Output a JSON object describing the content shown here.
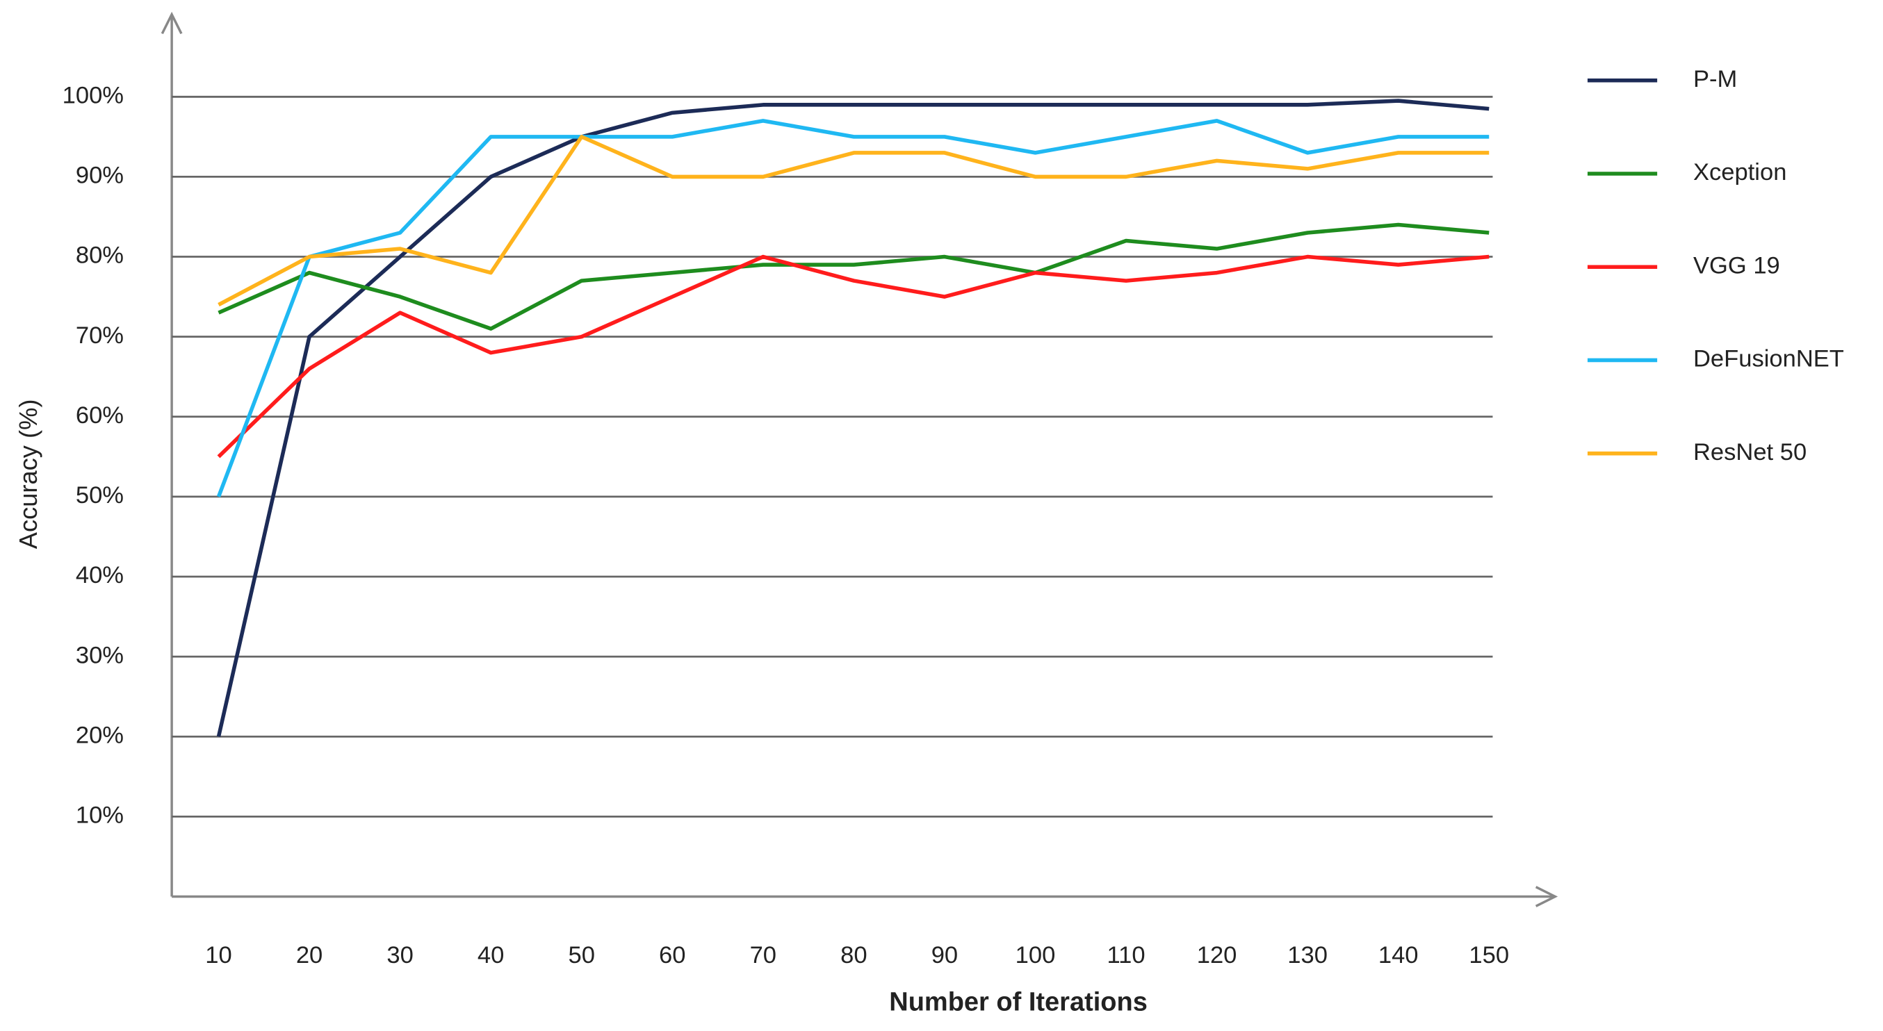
{
  "chart_data": {
    "type": "line",
    "x_label": "Number of Iterations",
    "y_label": "Accuracy (%)",
    "categories": [
      "10",
      "20",
      "30",
      "40",
      "50",
      "60",
      "70",
      "80",
      "90",
      "100",
      "110",
      "120",
      "130",
      "140",
      "150"
    ],
    "ylim": [
      0,
      110
    ],
    "yticks": [
      {
        "value": 10,
        "label": "10%"
      },
      {
        "value": 20,
        "label": "20%"
      },
      {
        "value": 30,
        "label": "30%"
      },
      {
        "value": 40,
        "label": "40%"
      },
      {
        "value": 50,
        "label": "50%"
      },
      {
        "value": 60,
        "label": "60%"
      },
      {
        "value": 70,
        "label": "70%"
      },
      {
        "value": 80,
        "label": "80%"
      },
      {
        "value": 90,
        "label": "90%"
      },
      {
        "value": 100,
        "label": "100%"
      }
    ],
    "grid": true,
    "legend": "right",
    "series": [
      {
        "name": "P-M",
        "color": "#1c2b57",
        "values": [
          20,
          70,
          80,
          90,
          95,
          98,
          99,
          99,
          99,
          99,
          99,
          99,
          99,
          99.5,
          98.5
        ]
      },
      {
        "name": "Xception",
        "color": "#1e8c1e",
        "values": [
          73,
          78,
          75,
          71,
          77,
          78,
          79,
          79,
          80,
          78,
          82,
          81,
          83,
          84,
          83
        ]
      },
      {
        "name": "VGG 19",
        "color": "#ff1c1c",
        "values": [
          55,
          66,
          73,
          68,
          70,
          75,
          80,
          77,
          75,
          78,
          77,
          78,
          80,
          79,
          80
        ]
      },
      {
        "name": "DeFusionNET",
        "color": "#1fb8f2",
        "values": [
          50,
          80,
          83,
          95,
          95,
          95,
          97,
          95,
          95,
          93,
          95,
          97,
          93,
          95,
          95
        ]
      },
      {
        "name": "ResNet 50",
        "color": "#ffb31c",
        "values": [
          74,
          80,
          81,
          78,
          95,
          90,
          90,
          93,
          93,
          90,
          90,
          92,
          91,
          93,
          93
        ]
      }
    ]
  }
}
